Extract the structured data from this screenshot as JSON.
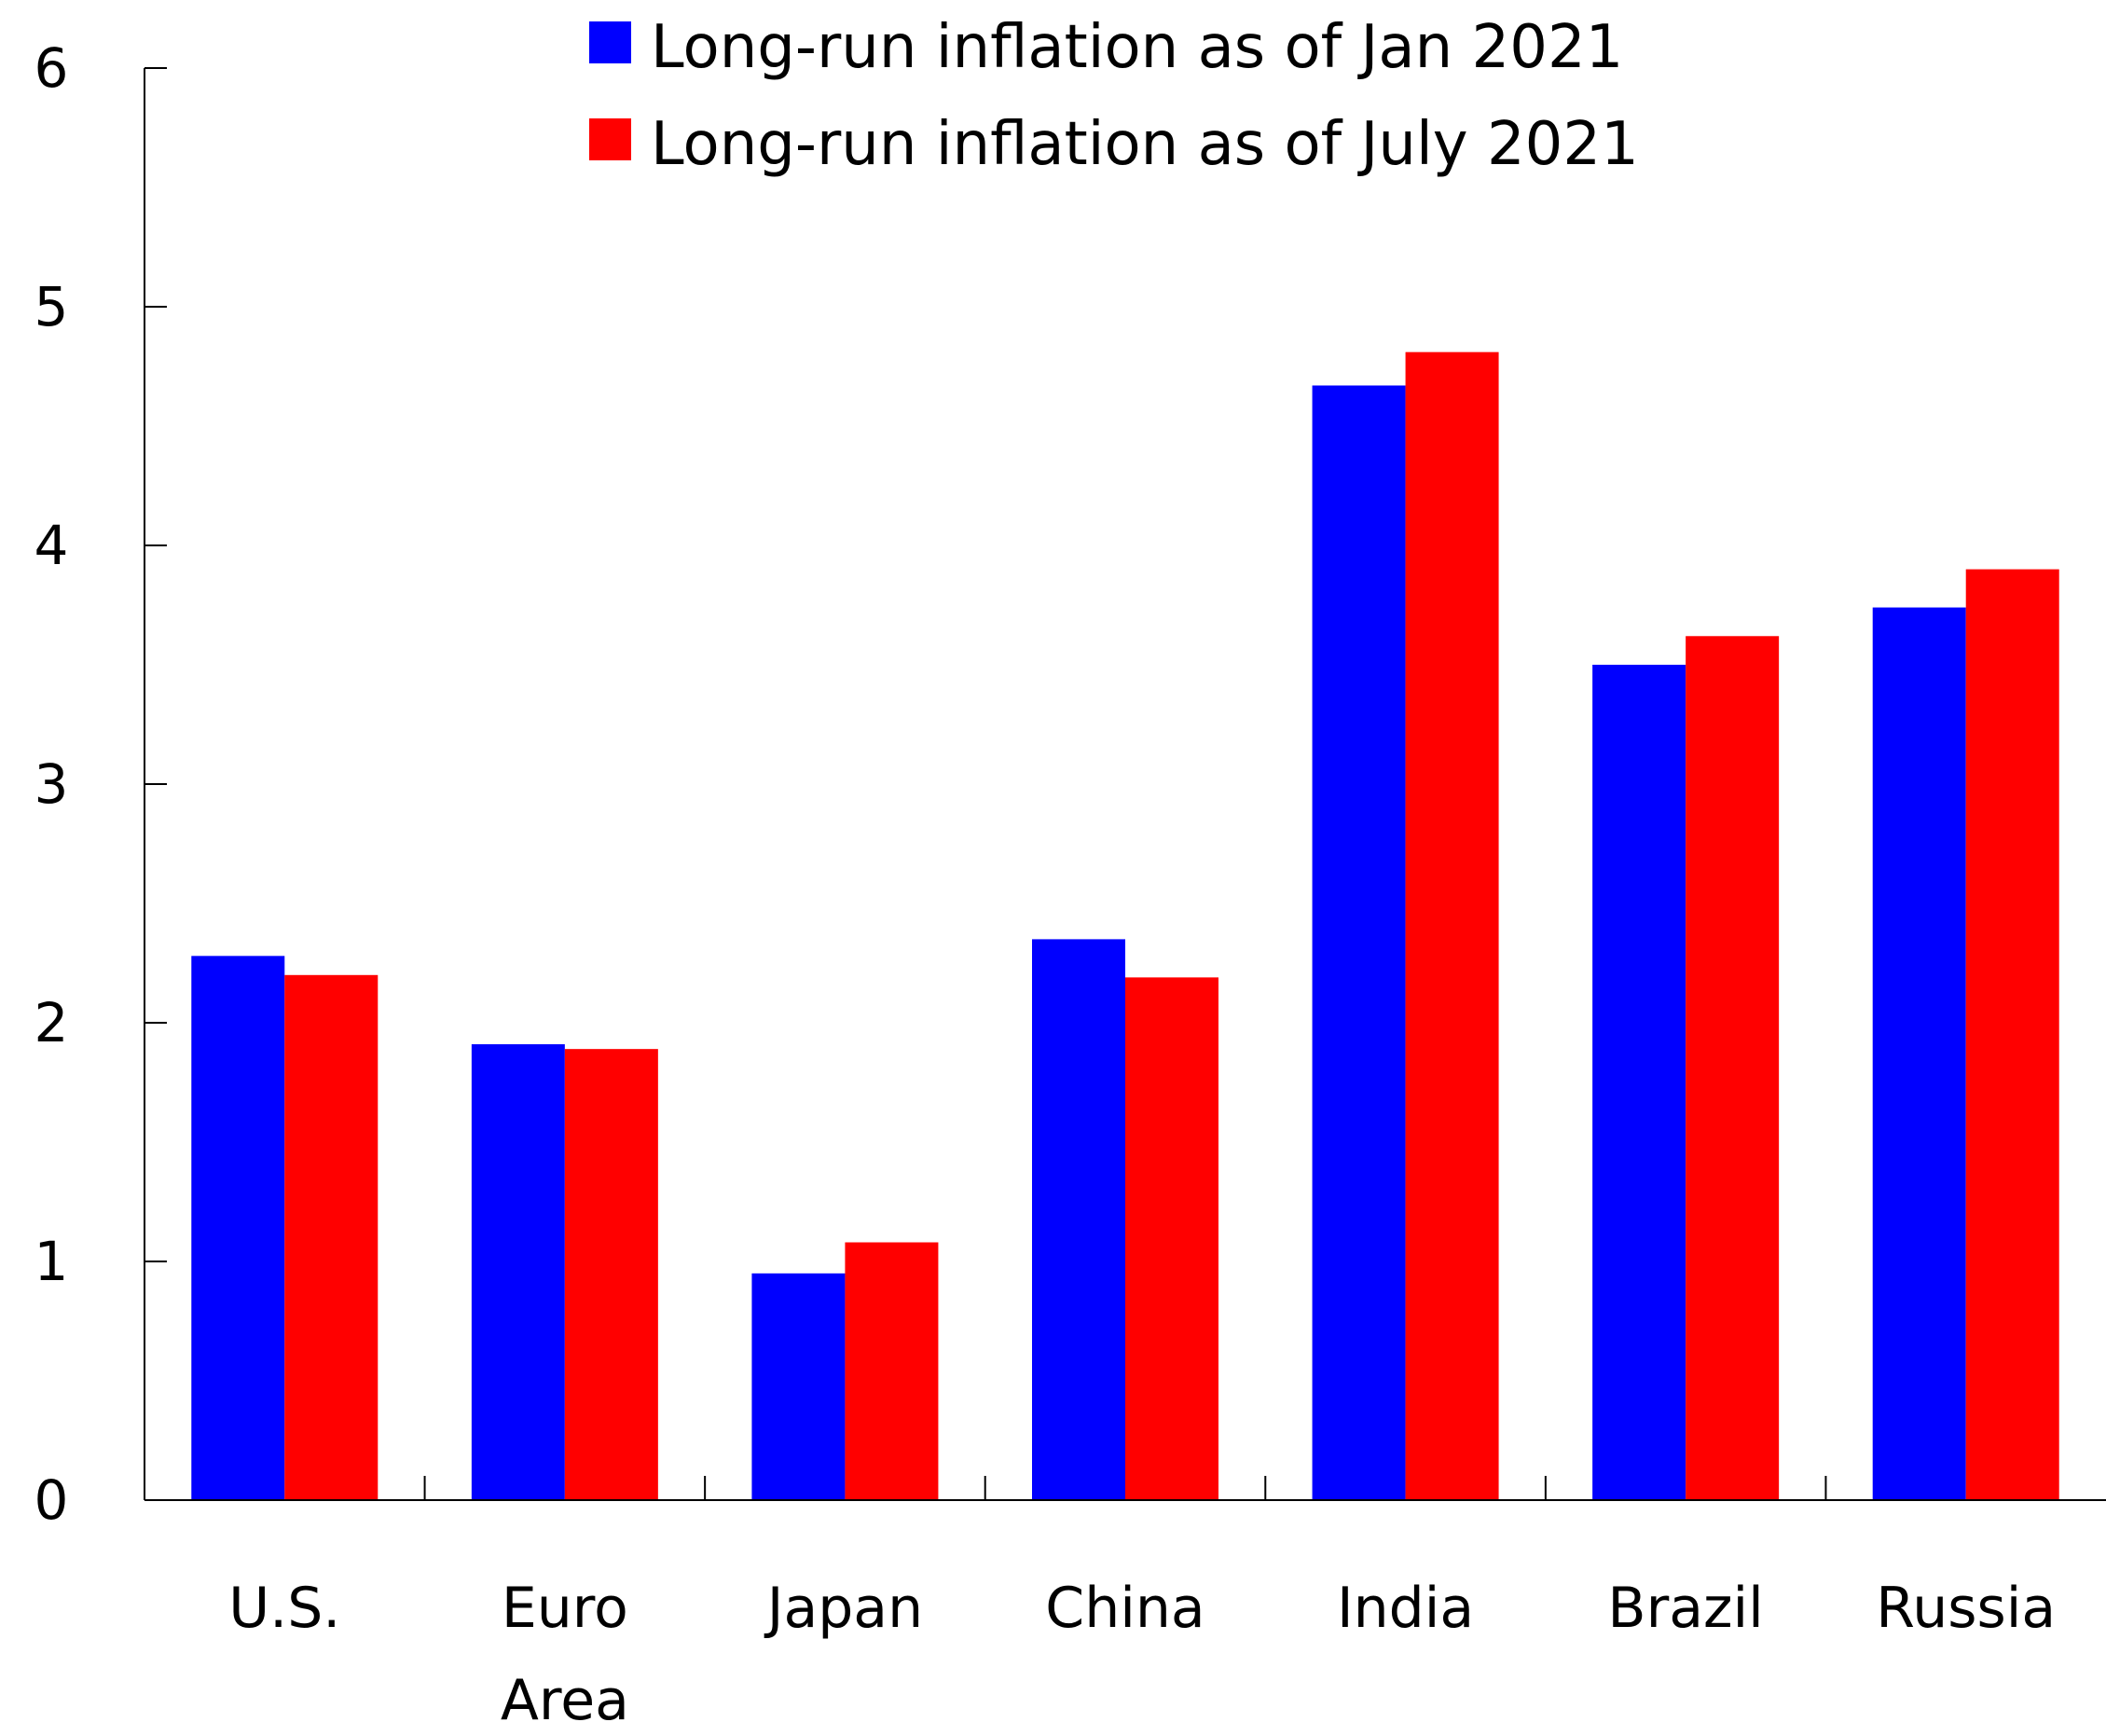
{
  "chart_data": {
    "type": "bar",
    "title": "",
    "xlabel": "",
    "ylabel": "",
    "ylim": [
      0,
      6
    ],
    "yticks": [
      "0",
      "1",
      "2",
      "3",
      "4",
      "5",
      "6"
    ],
    "categories": [
      [
        "U.S."
      ],
      [
        "Euro",
        "Area"
      ],
      [
        "Japan"
      ],
      [
        "China"
      ],
      [
        "India"
      ],
      [
        "Brazil"
      ],
      [
        "Russia"
      ]
    ],
    "series": [
      {
        "name": "Long-run inflation as of Jan 2021",
        "color": "#0000FF",
        "values": [
          2.28,
          1.91,
          0.95,
          2.35,
          4.67,
          3.5,
          3.74
        ]
      },
      {
        "name": "Long-run inflation as of July 2021",
        "color": "#FF0000",
        "values": [
          2.2,
          1.89,
          1.08,
          2.19,
          4.81,
          3.62,
          3.9
        ]
      }
    ],
    "grid": false,
    "legend_position": "top-center"
  }
}
